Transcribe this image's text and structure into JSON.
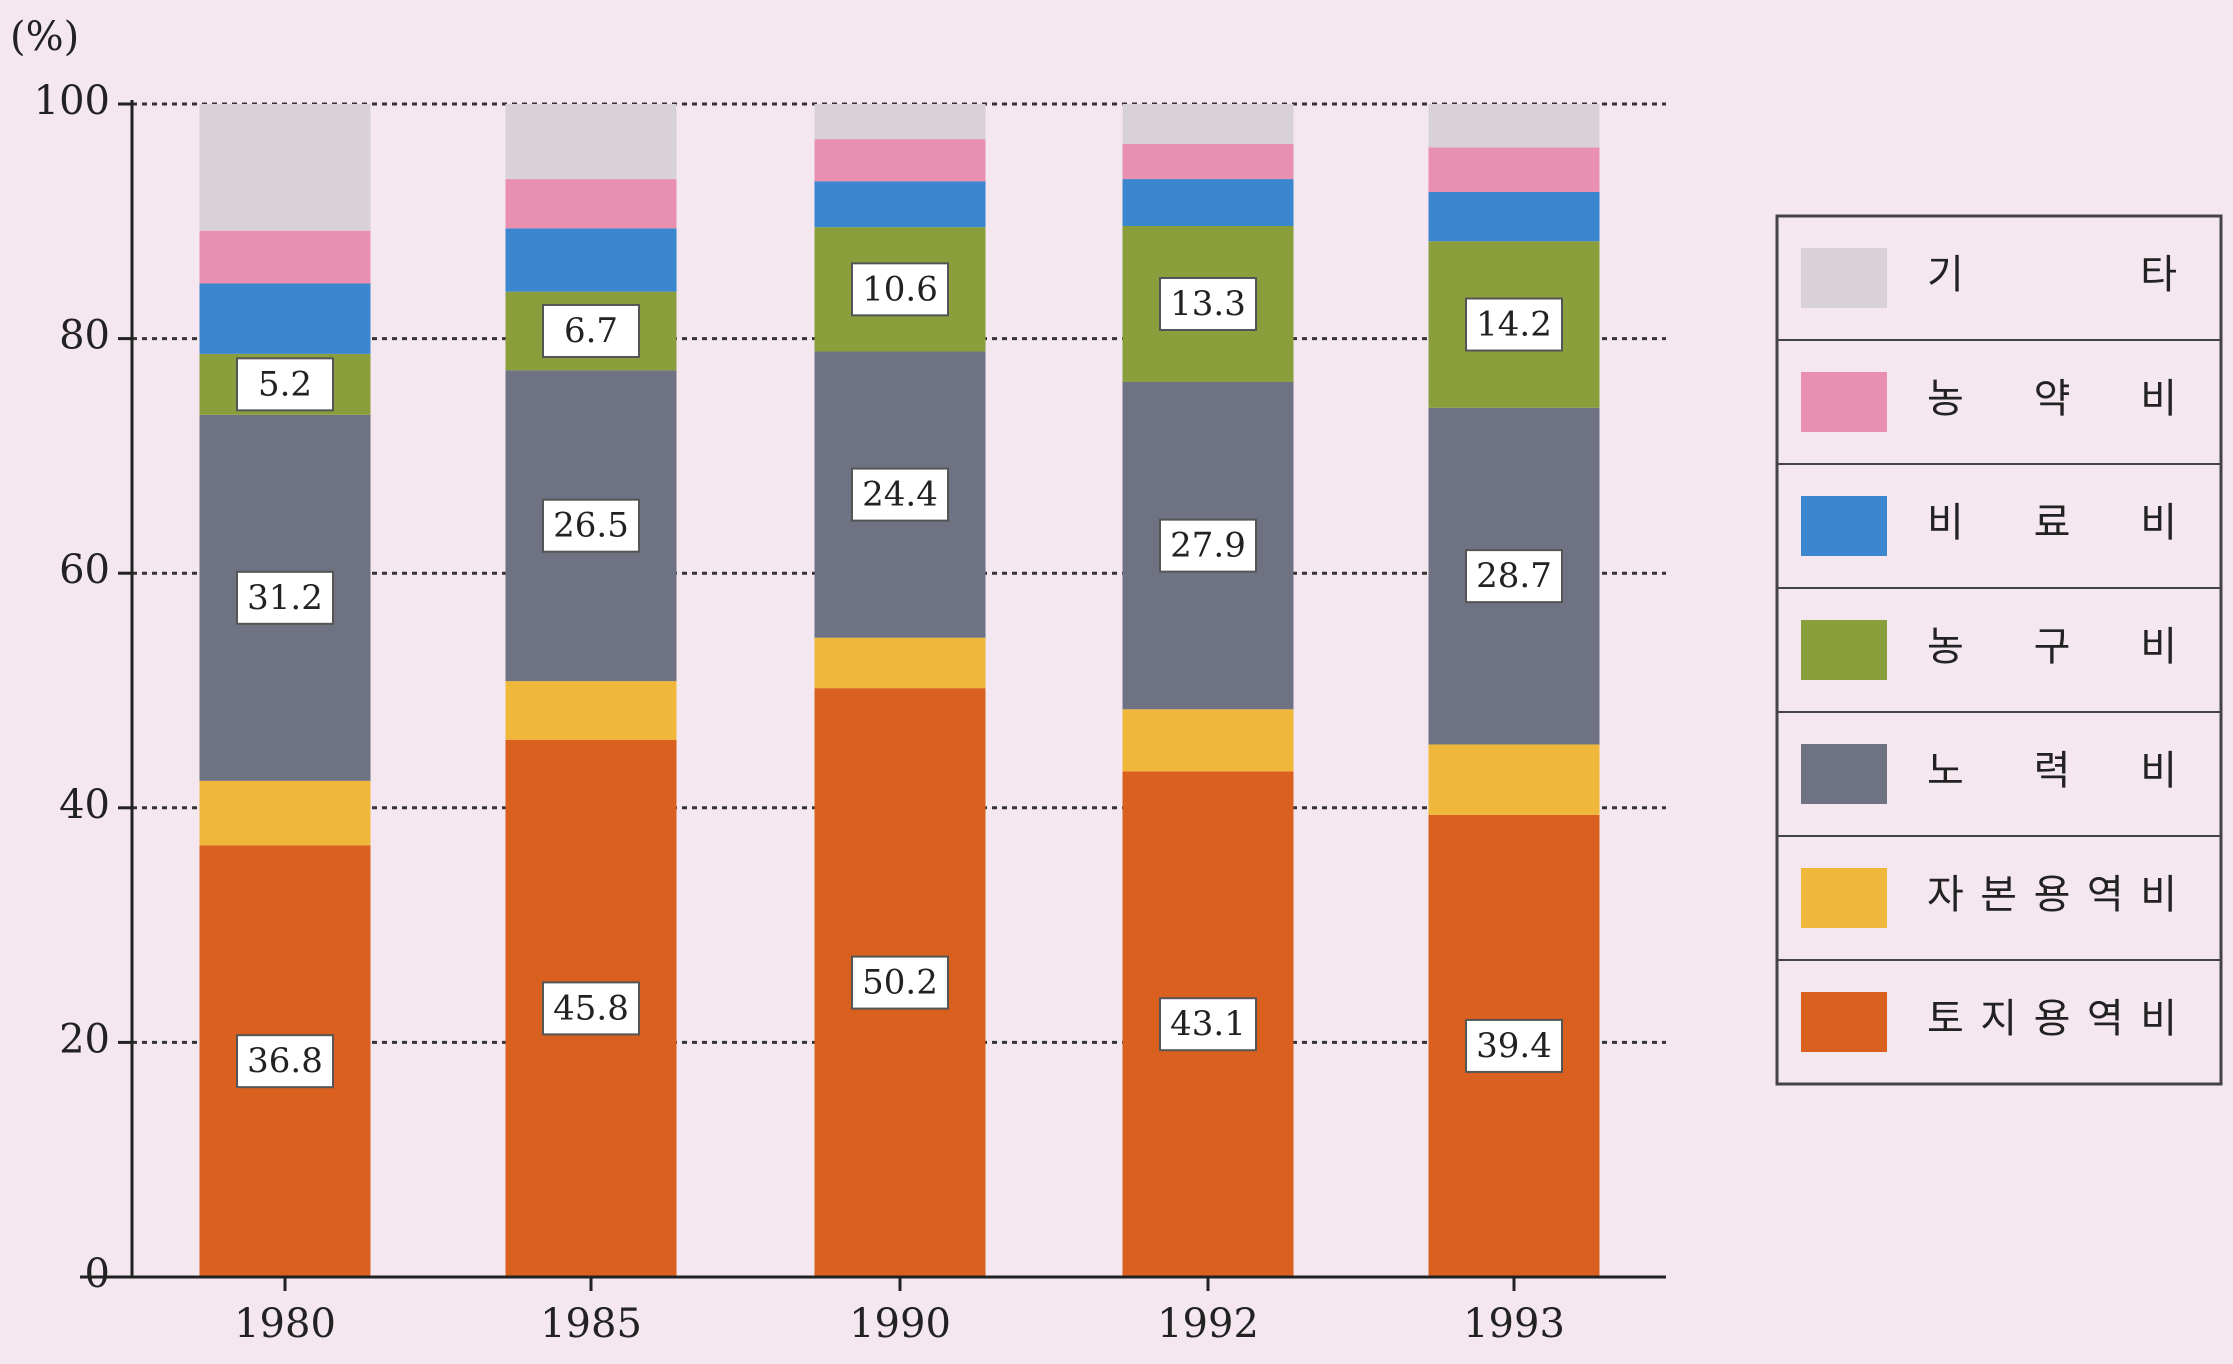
{
  "chart_data": {
    "type": "stacked_bar",
    "y_label": "(%)",
    "categories": [
      "1980",
      "1985",
      "1990",
      "1992",
      "1993"
    ],
    "ylim": [
      0,
      100
    ],
    "yticks": [
      0,
      20,
      40,
      60,
      80,
      100
    ],
    "grid": true,
    "legend": "right",
    "series": [
      {
        "name": "토지용역비",
        "color": "#d9601e",
        "show_labels": true,
        "values": [
          36.8,
          45.8,
          50.2,
          43.1,
          39.4
        ]
      },
      {
        "name": "자본용역비",
        "color": "#efb83a",
        "show_labels": false,
        "values": [
          5.5,
          5.0,
          4.3,
          5.3,
          6.0
        ]
      },
      {
        "name": "노력비",
        "color": "#6e7282",
        "show_labels": true,
        "values": [
          31.2,
          26.5,
          24.4,
          27.9,
          28.7
        ]
      },
      {
        "name": "농구비",
        "color": "#8a9e3c",
        "show_labels": true,
        "values": [
          5.2,
          6.7,
          10.6,
          13.3,
          14.2
        ]
      },
      {
        "name": "비료비",
        "color": "#3a86cf",
        "show_labels": false,
        "values": [
          6.0,
          5.4,
          3.9,
          4.0,
          4.2
        ]
      },
      {
        "name": "농약비",
        "color": "#e98fb0",
        "show_labels": false,
        "values": [
          4.5,
          4.2,
          3.6,
          3.0,
          3.8
        ]
      },
      {
        "name": "기타",
        "color": "#d8d2d8",
        "show_labels": false,
        "values": [
          10.8,
          6.4,
          3.0,
          3.4,
          3.7
        ]
      }
    ]
  }
}
